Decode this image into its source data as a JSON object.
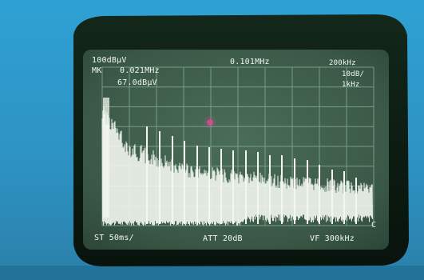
{
  "screen": {
    "ref_level": "100dBμV",
    "marker_label": "MK",
    "marker_freq": "0.021MHz",
    "marker_level": "67.0dBμV",
    "center_freq": "0.101MHz",
    "span": "200kHz",
    "scale": "10dB/",
    "rbw": "1kHz",
    "sweep_time": "ST 50ms/",
    "attenuation": "ATT 20dB",
    "video_filter": "VF 300kHz",
    "corner_mark": "C"
  },
  "colors": {
    "background_panel": "#2f95c7",
    "bezel": "#0b1d12",
    "screen": "#3c5b48",
    "grid": "#8bb19a",
    "trace": "#f3f7ef",
    "marker": "#e4489d"
  }
}
